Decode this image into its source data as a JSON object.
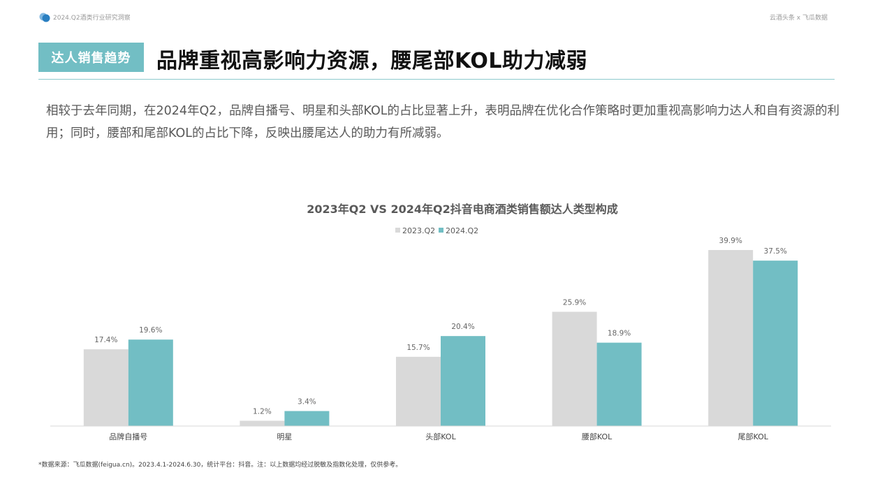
{
  "header": {
    "report_title": "2024.Q2酒类行业研究洞察",
    "brand": "云酒头条 x 飞瓜数据"
  },
  "section_tag": "达人销售趋势",
  "headline": "品牌重视高影响力资源，腰尾部KOL助力减弱",
  "description": "相较于去年同期，在2024年Q2，品牌自播号、明星和头部KOL的占比显著上升，表明品牌在优化合作策略时更加重视高影响力达人和自有资源的利用；同时，腰部和尾部KOL的占比下降，反映出腰尾达人的助力有所减弱。",
  "colors": {
    "accent": "#72bec4",
    "series_2023": "#d9d9d9",
    "series_2024": "#72bec4",
    "logo_blue": "#2a7fc1"
  },
  "chart_data": {
    "type": "bar",
    "title": "2023年Q2 VS 2024年Q2抖音电商酒类销售额达人类型构成",
    "categories": [
      "品牌自播号",
      "明星",
      "头部KOL",
      "腰部KOL",
      "尾部KOL"
    ],
    "series": [
      {
        "name": "2023.Q2",
        "values": [
          17.4,
          1.2,
          15.7,
          25.9,
          39.9
        ],
        "labels": [
          "17.4%",
          "1.2%",
          "15.7%",
          "25.9%",
          "39.9%"
        ]
      },
      {
        "name": "2024.Q2",
        "values": [
          19.6,
          3.4,
          20.4,
          18.9,
          37.5
        ],
        "labels": [
          "19.6%",
          "3.4%",
          "20.4%",
          "18.9%",
          "37.5%"
        ]
      }
    ],
    "ylim": [
      0,
      40
    ],
    "legend": "top-center",
    "grid": false
  },
  "footnote": "*数据来源：飞瓜数据(feigua.cn)。2023.4.1-2024.6.30，统计平台：抖音。注：以上数据均经过脱敏及指数化处理，仅供参考。"
}
